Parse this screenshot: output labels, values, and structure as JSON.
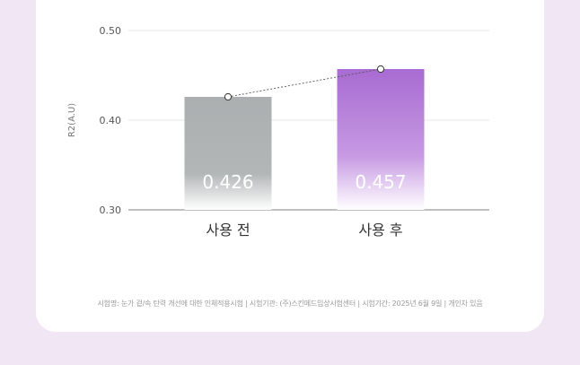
{
  "chart_data": {
    "type": "bar",
    "ylabel": "R2(A.U)",
    "ylim": [
      0.3,
      0.5
    ],
    "yticks": [
      "0.50",
      "0.40",
      "0.30"
    ],
    "grid": true,
    "categories": [
      "사용 전",
      "사용 후"
    ],
    "values": [
      0.426,
      0.457
    ],
    "value_labels": [
      "0.426",
      "0.457"
    ],
    "trend_line": "dotted",
    "colors": {
      "before": "#abafb0",
      "after": "#a86bd2",
      "grid": "#dcdcdc",
      "axis": "#9a9a9a"
    }
  },
  "footnote": "시험명: 눈가 겉/속 탄력 개선에 대한 인체적용시험 | 시험기관: (주)스킨메드임상시험센터 | 시험기간: 2025년 6월 9일 | 개인차 있음"
}
